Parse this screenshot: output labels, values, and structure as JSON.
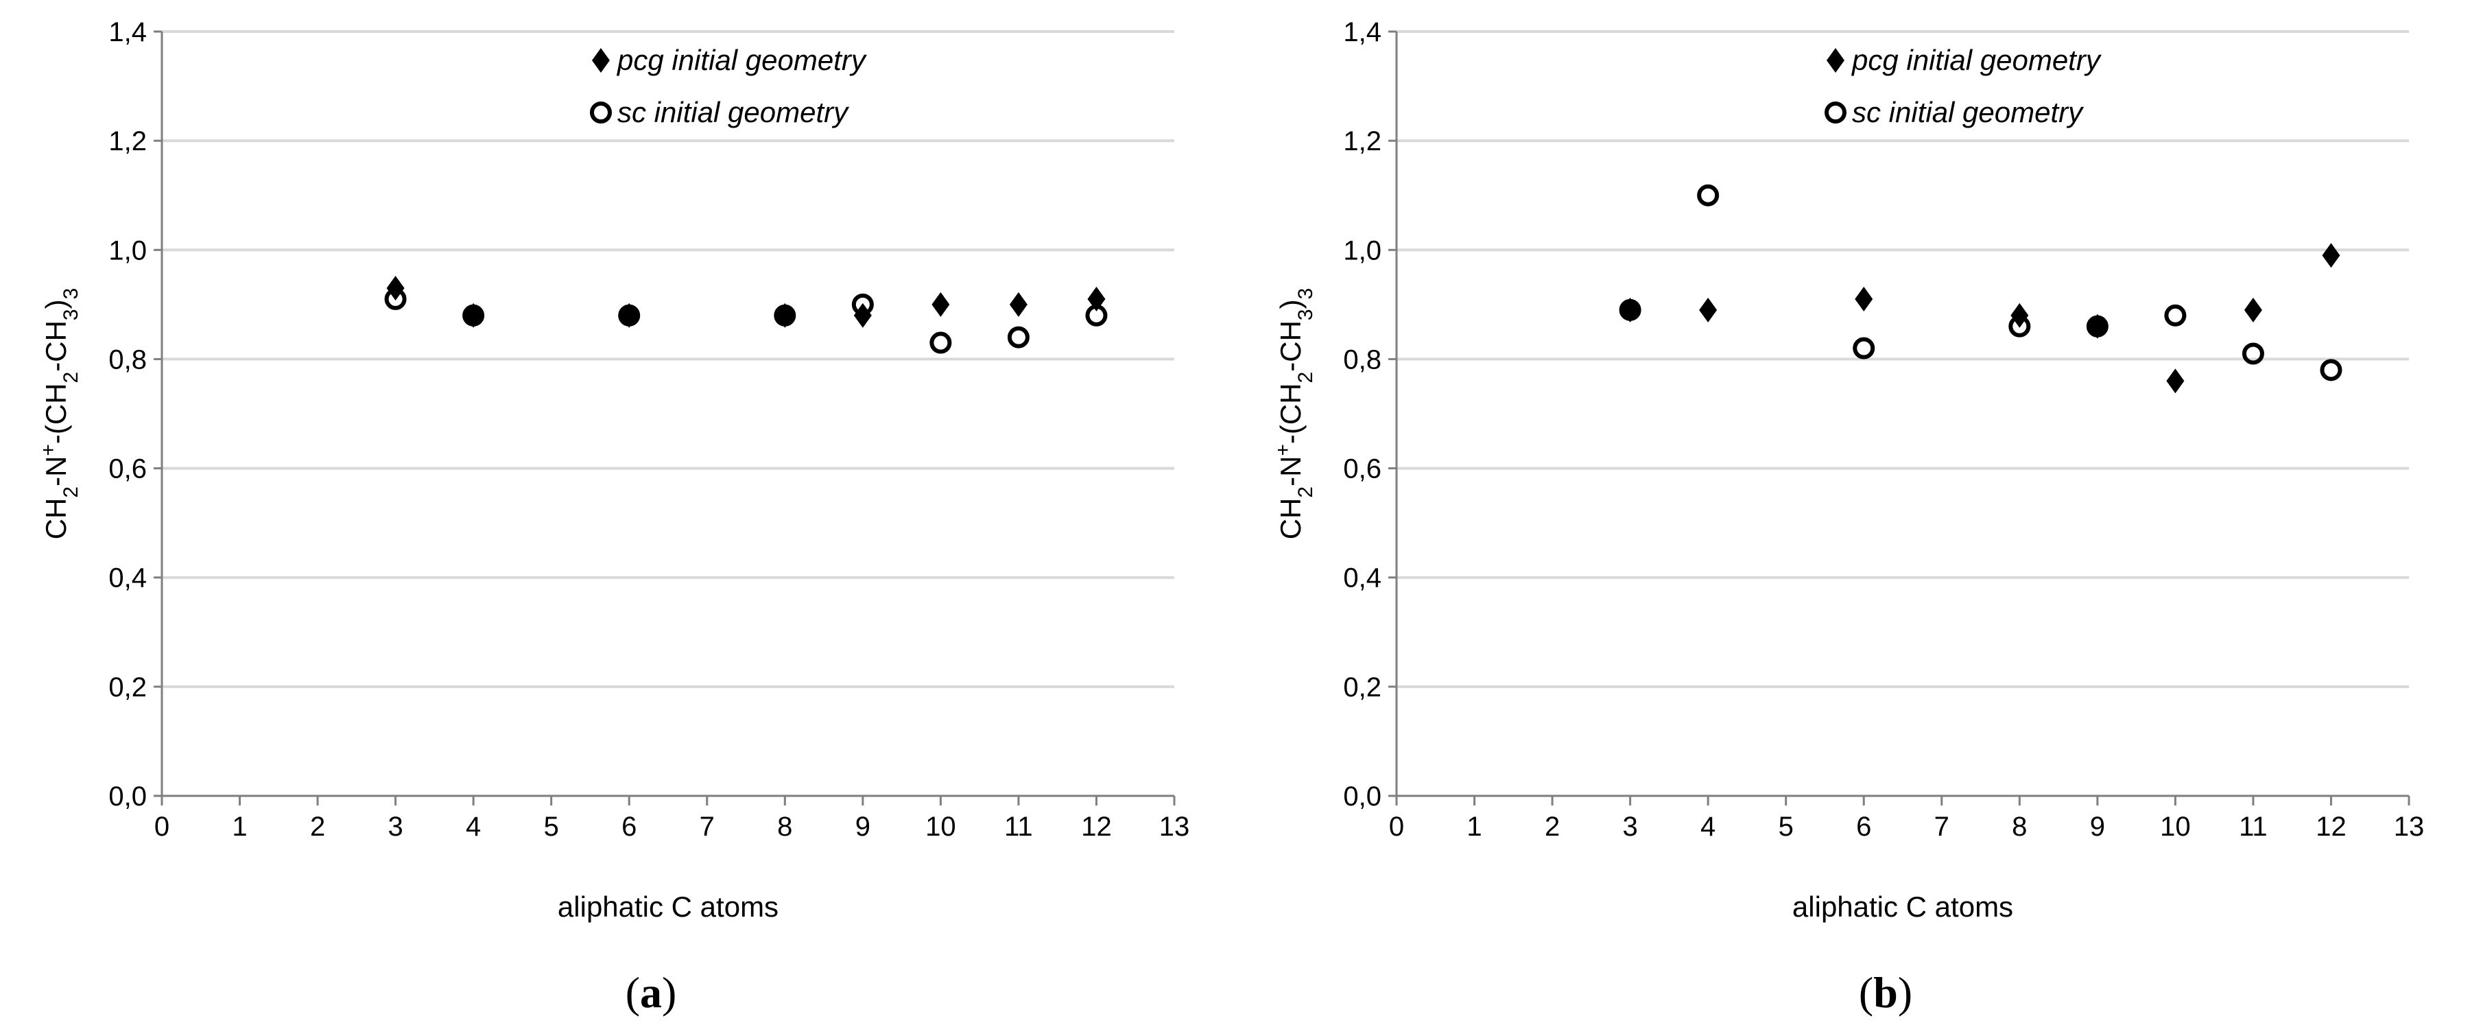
{
  "chart_data": [
    {
      "panel": "a",
      "type": "scatter",
      "caption_label": "a",
      "xlabel": "aliphatic C atoms",
      "ylabel": "CH2-N+-(CH2-CH3)3",
      "xlim": [
        0,
        13
      ],
      "ylim": [
        0.0,
        1.4
      ],
      "xticks": [
        "0",
        "1",
        "2",
        "3",
        "4",
        "5",
        "6",
        "7",
        "8",
        "9",
        "10",
        "11",
        "12",
        "13"
      ],
      "yticks": [
        "0,0",
        "0,2",
        "0,4",
        "0,6",
        "0,8",
        "1,0",
        "1,2",
        "1,4"
      ],
      "grid": true,
      "legend_position": "top",
      "series": [
        {
          "name": "pcg initial geometry",
          "marker": "diamond",
          "x": [
            3,
            4,
            6,
            8,
            9,
            10,
            11,
            12
          ],
          "y": [
            0.93,
            0.88,
            0.88,
            0.88,
            0.88,
            0.9,
            0.9,
            0.91
          ]
        },
        {
          "name": "sc initial geometry",
          "marker": "circle",
          "x": [
            3,
            4,
            6,
            8,
            9,
            10,
            11,
            12
          ],
          "y": [
            0.91,
            0.88,
            0.88,
            0.88,
            0.9,
            0.83,
            0.84,
            0.88
          ]
        }
      ]
    },
    {
      "panel": "b",
      "type": "scatter",
      "caption_label": "b",
      "xlabel": "aliphatic C atoms",
      "ylabel": "CH2-N+-(CH2-CH3)3",
      "xlim": [
        0,
        13
      ],
      "ylim": [
        0.0,
        1.4
      ],
      "xticks": [
        "0",
        "1",
        "2",
        "3",
        "4",
        "5",
        "6",
        "7",
        "8",
        "9",
        "10",
        "11",
        "12",
        "13"
      ],
      "yticks": [
        "0,0",
        "0,2",
        "0,4",
        "0,6",
        "0,8",
        "1,0",
        "1,2",
        "1,4"
      ],
      "grid": true,
      "legend_position": "top",
      "series": [
        {
          "name": "pcg initial geometry",
          "marker": "diamond",
          "x": [
            3,
            4,
            6,
            8,
            9,
            10,
            11,
            12
          ],
          "y": [
            0.89,
            0.89,
            0.91,
            0.88,
            0.86,
            0.76,
            0.89,
            0.99
          ]
        },
        {
          "name": "sc initial geometry",
          "marker": "circle",
          "x": [
            3,
            4,
            6,
            8,
            9,
            10,
            11,
            12
          ],
          "y": [
            0.89,
            1.1,
            0.82,
            0.86,
            0.86,
            0.88,
            0.81,
            0.78
          ]
        }
      ]
    }
  ]
}
